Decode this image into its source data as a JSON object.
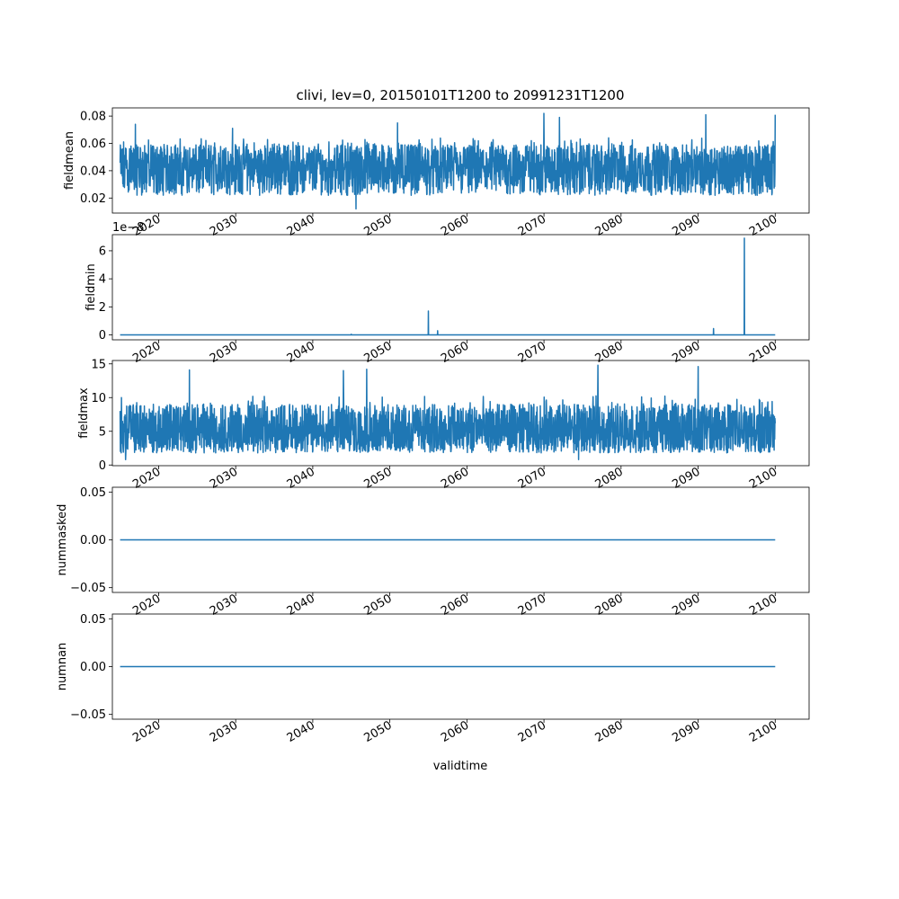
{
  "chart_data": {
    "type": "line",
    "title": "clivi, lev=0, 20150101T1200 to 20991231T1200",
    "xlabel": "validtime",
    "xlim": [
      2014.0,
      2104.4
    ],
    "x_start": "2015-01-01",
    "x_end": "2099-12-31",
    "xticks": [
      "2020",
      "2030",
      "2040",
      "2050",
      "2060",
      "2070",
      "2080",
      "2090",
      "2100"
    ],
    "line_color": "#1f77b4",
    "grid": false,
    "panels": [
      {
        "ylabel": "fieldmean",
        "ylim": [
          0.009,
          0.086
        ],
        "yticks": [
          "0.02",
          "0.04",
          "0.06",
          "0.08"
        ],
        "ytick_values": [
          0.02,
          0.04,
          0.06,
          0.08
        ],
        "offset_text": "",
        "style": "noise",
        "baseline": 0.04,
        "band_low": 0.022,
        "band_high": 0.061,
        "min_value": 0.012,
        "max_value": 0.082,
        "spikes": [
          {
            "x": 2017.0,
            "y": 0.074
          },
          {
            "x": 2029.6,
            "y": 0.071
          },
          {
            "x": 2045.6,
            "y": 0.012
          },
          {
            "x": 2051.0,
            "y": 0.075
          },
          {
            "x": 2070.0,
            "y": 0.082
          },
          {
            "x": 2072.0,
            "y": 0.079
          },
          {
            "x": 2091.0,
            "y": 0.081
          },
          {
            "x": 2100.0,
            "y": 0.081
          }
        ]
      },
      {
        "ylabel": "fieldmin",
        "ylim": [
          -0.35,
          7.15
        ],
        "yticks": [
          "0",
          "2",
          "4",
          "6"
        ],
        "ytick_values": [
          0,
          2,
          4,
          6
        ],
        "offset_text": "1e−8",
        "style": "flat_spikes",
        "baseline": 0.0,
        "spikes": [
          {
            "x": 2045.0,
            "y": 0.05
          },
          {
            "x": 2055.0,
            "y": 1.7
          },
          {
            "x": 2056.2,
            "y": 0.3
          },
          {
            "x": 2092.0,
            "y": 0.45
          },
          {
            "x": 2096.0,
            "y": 6.9
          }
        ]
      },
      {
        "ylabel": "fieldmax",
        "ylim": [
          -0.1,
          15.5
        ],
        "yticks": [
          "0",
          "5",
          "10",
          "15"
        ],
        "ytick_values": [
          0,
          5,
          10,
          15
        ],
        "offset_text": "",
        "style": "noise",
        "baseline": 4.5,
        "band_low": 1.8,
        "band_high": 9.5,
        "min_value": 0.8,
        "max_value": 14.8,
        "spikes": [
          {
            "x": 2015.7,
            "y": 0.8
          },
          {
            "x": 2024.0,
            "y": 14.1
          },
          {
            "x": 2044.0,
            "y": 14.0
          },
          {
            "x": 2047.0,
            "y": 14.2
          },
          {
            "x": 2077.0,
            "y": 14.8
          },
          {
            "x": 2074.5,
            "y": 0.8
          },
          {
            "x": 2090.0,
            "y": 14.6
          }
        ]
      },
      {
        "ylabel": "nummasked",
        "ylim": [
          -0.055,
          0.055
        ],
        "yticks": [
          "−0.05",
          "0.00",
          "0.05"
        ],
        "ytick_values": [
          -0.05,
          0.0,
          0.05
        ],
        "offset_text": "",
        "style": "constant",
        "baseline": 0.0
      },
      {
        "ylabel": "numnan",
        "ylim": [
          -0.055,
          0.055
        ],
        "yticks": [
          "−0.05",
          "0.00",
          "0.05"
        ],
        "ytick_values": [
          -0.05,
          0.0,
          0.05
        ],
        "offset_text": "",
        "style": "constant",
        "baseline": 0.0
      }
    ]
  }
}
